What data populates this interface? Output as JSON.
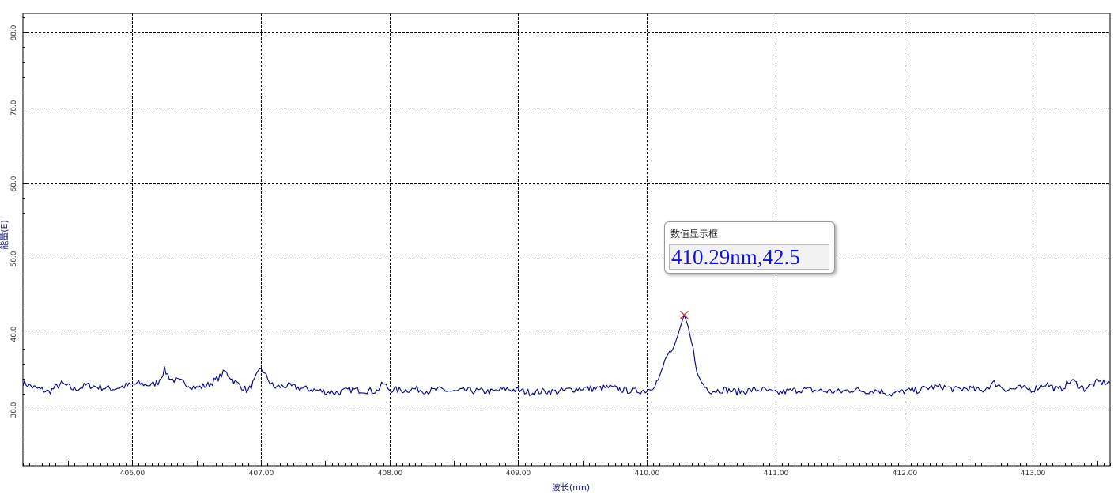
{
  "chart_data": {
    "type": "line",
    "xlabel": "波长(nm)",
    "ylabel": "能量(E)",
    "xlim": [
      405.15,
      413.6
    ],
    "ylim": [
      22.5,
      82.5
    ],
    "grid": true,
    "grid_style": "dashed",
    "x_ticks": [
      406,
      407,
      408,
      409,
      410,
      411,
      412,
      413
    ],
    "x_tick_labels": [
      "406.00",
      "407.00",
      "408.00",
      "409.00",
      "410.00",
      "411.00",
      "412.00",
      "413.00"
    ],
    "y_ticks": [
      30,
      40,
      50,
      60,
      70,
      80
    ],
    "y_tick_labels": [
      "30.0",
      "40.0",
      "50.0",
      "60.0",
      "70.0",
      "80.0"
    ],
    "series": [
      {
        "color": "#00008b",
        "x": [
          405.15,
          405.25,
          405.35,
          405.45,
          405.55,
          405.65,
          405.75,
          405.85,
          405.95,
          406.05,
          406.15,
          406.2,
          406.25,
          406.3,
          406.4,
          406.5,
          406.6,
          406.68,
          406.72,
          406.8,
          406.9,
          406.95,
          407.0,
          407.03,
          407.1,
          407.2,
          407.3,
          407.4,
          407.5,
          407.6,
          407.7,
          407.8,
          407.9,
          407.95,
          408.0,
          408.1,
          408.2,
          408.3,
          408.4,
          408.5,
          408.6,
          408.7,
          408.8,
          408.9,
          409.0,
          409.1,
          409.2,
          409.3,
          409.4,
          409.5,
          409.6,
          409.7,
          409.8,
          409.9,
          410.0,
          410.05,
          410.1,
          410.15,
          410.2,
          410.24,
          410.27,
          410.29,
          410.32,
          410.36,
          410.4,
          410.45,
          410.5,
          410.6,
          410.7,
          410.8,
          410.9,
          411.0,
          411.1,
          411.2,
          411.3,
          411.4,
          411.5,
          411.6,
          411.7,
          411.8,
          411.9,
          412.0,
          412.1,
          412.2,
          412.3,
          412.4,
          412.5,
          412.6,
          412.7,
          412.8,
          412.9,
          413.0,
          413.1,
          413.2,
          413.3,
          413.4,
          413.5,
          413.6
        ],
        "y": [
          33.5,
          32.8,
          32.3,
          33.4,
          32.6,
          33.2,
          32.9,
          32.7,
          33.1,
          33.4,
          33.2,
          33.6,
          35.2,
          34.0,
          33.5,
          32.8,
          33.3,
          34.3,
          35.0,
          33.6,
          32.4,
          33.8,
          35.5,
          34.6,
          32.9,
          33.1,
          32.8,
          32.6,
          32.3,
          32.2,
          32.6,
          32.5,
          32.4,
          33.4,
          32.6,
          32.5,
          32.7,
          32.4,
          32.6,
          32.3,
          32.5,
          32.4,
          32.3,
          32.7,
          32.5,
          32.2,
          32.4,
          32.3,
          32.6,
          32.8,
          32.7,
          32.9,
          32.6,
          32.4,
          32.5,
          33.1,
          34.2,
          37.0,
          37.5,
          39.8,
          41.5,
          42.5,
          41.0,
          37.8,
          34.2,
          33.0,
          32.4,
          32.6,
          32.3,
          32.5,
          32.6,
          32.1,
          32.4,
          32.6,
          32.5,
          32.4,
          32.3,
          32.6,
          32.4,
          32.5,
          32.0,
          32.4,
          32.5,
          32.9,
          33.0,
          32.6,
          32.8,
          32.4,
          33.5,
          32.6,
          32.8,
          32.6,
          33.4,
          32.5,
          33.8,
          32.7,
          33.6,
          33.5
        ]
      }
    ],
    "marker": {
      "x": 410.29,
      "y": 42.5,
      "symbol": "x",
      "color": "#d42020"
    }
  },
  "tooltip": {
    "title": "数值显示框",
    "value": "410.29nm,42.5"
  }
}
